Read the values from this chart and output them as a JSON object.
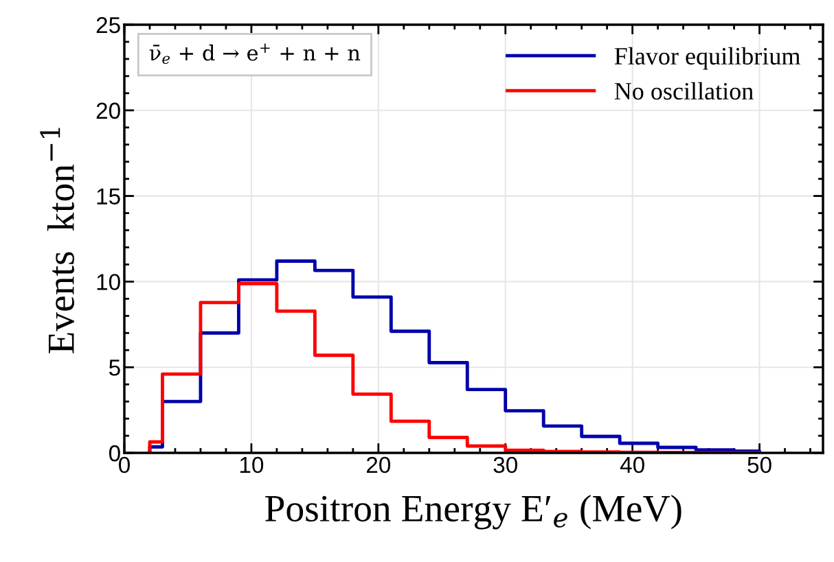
{
  "chart_data": {
    "type": "histogram",
    "xlabel": "Positron Energy E′$_{e}$ (MeV)",
    "ylabel": "Events  kton$^{−1}$",
    "annotations": [
      "ν̄$_{e}$ + d → e$^{+}$ + n + n"
    ],
    "bins": [
      2,
      3,
      6,
      9,
      12,
      15,
      18,
      21,
      24,
      27,
      30,
      33,
      36,
      39,
      42,
      45,
      48,
      50
    ],
    "series": [
      {
        "name": "Flavor equilibrium",
        "color": "#0000aa",
        "values": [
          0.35,
          3.0,
          7.0,
          10.1,
          11.2,
          10.65,
          9.1,
          7.1,
          5.27,
          3.7,
          2.46,
          1.57,
          0.96,
          0.56,
          0.32,
          0.17,
          0.1
        ]
      },
      {
        "name": "No oscillation",
        "color": "#ff0000",
        "values": [
          0.64,
          4.6,
          8.78,
          9.88,
          8.28,
          5.7,
          3.43,
          1.85,
          0.9,
          0.4,
          0.15,
          0.08,
          0.05,
          0.03,
          0.02,
          0.01,
          0.01
        ]
      }
    ],
    "xlim": [
      0,
      55
    ],
    "ylim": [
      0,
      25
    ],
    "xticks": [
      0,
      10,
      20,
      30,
      40,
      50
    ],
    "yticks": [
      0,
      5,
      10,
      15,
      20,
      25
    ],
    "grid": true,
    "legend": "top right"
  }
}
